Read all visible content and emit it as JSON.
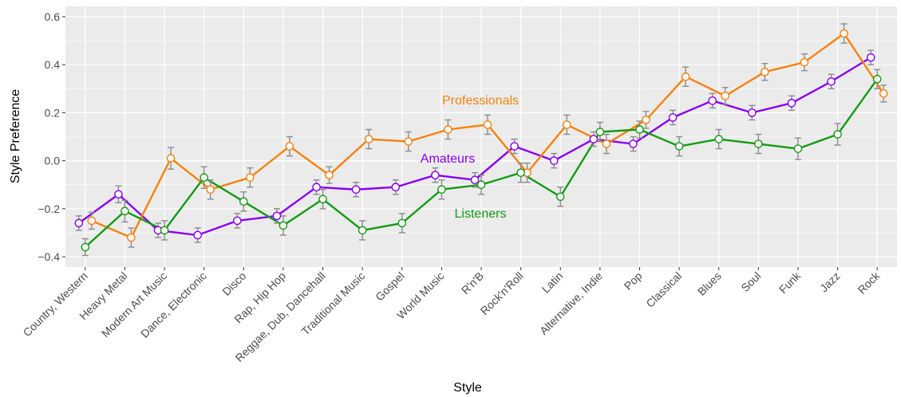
{
  "chart_data": {
    "type": "line",
    "x_label": "Style",
    "y_label": "Style Preference",
    "categories": [
      "Country, Western",
      "Heavy Metal",
      "Modern Art Music",
      "Dance, Electronic",
      "Disco",
      "Rap, Hip Hop",
      "Reggae, Dub, Dancehall",
      "Traditional Music",
      "Gospel",
      "World Music",
      "R'n'B",
      "Rock'n'Roll",
      "Latin",
      "Alternative, Indie",
      "Pop",
      "Classical",
      "Blues",
      "Soul",
      "Funk",
      "Jazz",
      "Rock"
    ],
    "series": [
      {
        "name": "Amateurs",
        "color": "#8a00f0",
        "values": [
          -0.26,
          -0.14,
          -0.29,
          -0.31,
          -0.25,
          -0.23,
          -0.11,
          -0.12,
          -0.11,
          -0.06,
          -0.08,
          0.06,
          0.0,
          0.09,
          0.07,
          0.18,
          0.25,
          0.2,
          0.24,
          0.33,
          0.43
        ],
        "errors": [
          0.03,
          0.035,
          0.03,
          0.03,
          0.03,
          0.03,
          0.03,
          0.03,
          0.03,
          0.03,
          0.03,
          0.03,
          0.03,
          0.03,
          0.03,
          0.03,
          0.03,
          0.03,
          0.03,
          0.03,
          0.03
        ]
      },
      {
        "name": "Professionals",
        "color": "#f5820d",
        "values": [
          -0.25,
          -0.32,
          0.01,
          -0.12,
          -0.07,
          0.06,
          -0.06,
          0.09,
          0.08,
          0.13,
          0.15,
          -0.05,
          0.15,
          0.07,
          0.17,
          0.35,
          0.27,
          0.37,
          0.41,
          0.53,
          0.28
        ],
        "errors": [
          0.035,
          0.04,
          0.045,
          0.04,
          0.04,
          0.04,
          0.035,
          0.04,
          0.04,
          0.04,
          0.04,
          0.04,
          0.04,
          0.04,
          0.035,
          0.04,
          0.035,
          0.035,
          0.035,
          0.04,
          0.035
        ]
      },
      {
        "name": "Listeners",
        "color": "#149b14",
        "values": [
          -0.36,
          -0.21,
          -0.29,
          -0.07,
          -0.17,
          -0.27,
          -0.16,
          -0.29,
          -0.26,
          -0.12,
          -0.1,
          -0.05,
          -0.15,
          0.12,
          0.13,
          0.06,
          0.09,
          0.07,
          0.05,
          0.11,
          0.34
        ],
        "errors": [
          0.035,
          0.045,
          0.04,
          0.045,
          0.04,
          0.04,
          0.04,
          0.04,
          0.04,
          0.04,
          0.04,
          0.04,
          0.04,
          0.04,
          0.035,
          0.04,
          0.04,
          0.04,
          0.045,
          0.045,
          0.04
        ]
      }
    ],
    "annotations": [
      "Professionals",
      "Amateurs",
      "Listeners"
    ],
    "ylim": [
      -0.443,
      0.643
    ],
    "yticks": [
      {
        "value": -0.4,
        "label": "−0.4"
      },
      {
        "value": -0.2,
        "label": "−0.2"
      },
      {
        "value": 0,
        "label": "0.0"
      },
      0.2,
      0.4,
      0.6
    ],
    "grid": true,
    "error_color": "#8c8c8c",
    "panel_color": "#ebebeb"
  }
}
